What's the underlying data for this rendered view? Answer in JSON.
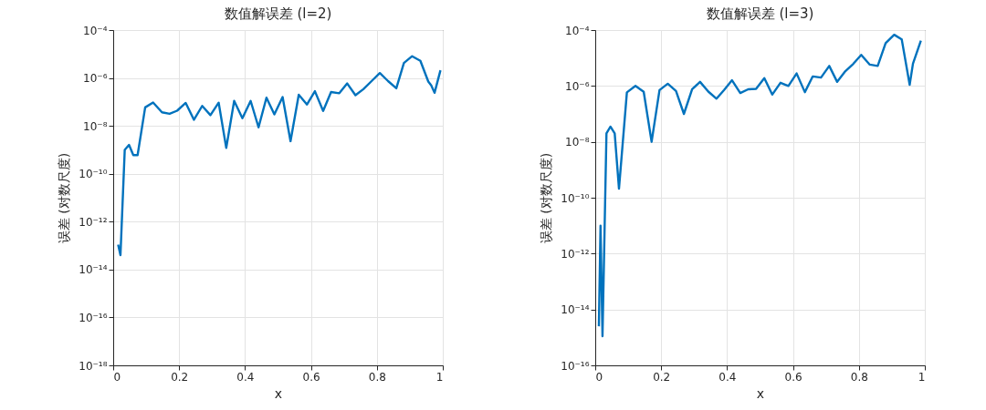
{
  "chart_data": [
    {
      "type": "line",
      "title": "数值解误差 (l=2)",
      "xlabel": "x",
      "ylabel": "误差 (对数尺度)",
      "log": true,
      "grid": true,
      "x": [
        0.015,
        0.022,
        0.035,
        0.048,
        0.061,
        0.074,
        0.097,
        0.121,
        0.148,
        0.171,
        0.194,
        0.22,
        0.245,
        0.27,
        0.295,
        0.32,
        0.343,
        0.367,
        0.392,
        0.417,
        0.441,
        0.465,
        0.489,
        0.514,
        0.538,
        0.563,
        0.588,
        0.612,
        0.637,
        0.661,
        0.686,
        0.71,
        0.735,
        0.759,
        0.784,
        0.809,
        0.834,
        0.859,
        0.882,
        0.907,
        0.932,
        0.956,
        0.965,
        0.975,
        0.993
      ],
      "series": [
        {
          "color": "#0072bd",
          "values": [
            1.1e-13,
            4e-14,
            1e-09,
            1.6e-09,
            6e-10,
            6e-10,
            5.9e-08,
            9.5e-08,
            3.7e-08,
            3.2e-08,
            4.3e-08,
            9.1e-08,
            1.8e-08,
            6.8e-08,
            2.8e-08,
            9.3e-08,
            1.2e-09,
            1.1e-07,
            2.1e-08,
            1.1e-07,
            8.7e-09,
            1.5e-07,
            3e-08,
            1.6e-07,
            2.3e-09,
            2e-07,
            7.8e-08,
            2.8e-07,
            4.2e-08,
            2.6e-07,
            2.3e-07,
            5.9e-07,
            1.9e-07,
            3.4e-07,
            7.4e-07,
            1.6e-06,
            7.4e-07,
            3.7e-07,
            4.2e-06,
            8.1e-06,
            5.2e-06,
            7.1e-07,
            4.9e-07,
            2.4e-07,
            2.1e-06
          ]
        }
      ],
      "xlim": [
        0,
        1
      ],
      "xticks": [
        0,
        0.2,
        0.4,
        0.6,
        0.8,
        1
      ],
      "ylim": [
        1e-18,
        0.0001
      ],
      "yticks": [
        {
          "value": 1e-18,
          "label": "10⁻¹⁸"
        },
        {
          "value": 1e-16,
          "label": "10⁻¹⁶"
        },
        {
          "value": 1e-14,
          "label": "10⁻¹⁴"
        },
        {
          "value": 1e-12,
          "label": "10⁻¹²"
        },
        {
          "value": 1e-10,
          "label": "10⁻¹⁰"
        },
        {
          "value": 1e-08,
          "label": "10⁻⁸"
        },
        {
          "value": 1e-06,
          "label": "10⁻⁶"
        },
        {
          "value": 0.0001,
          "label": "10⁻⁴"
        }
      ]
    },
    {
      "type": "line",
      "title": "数值解误差 (l=3)",
      "xlabel": "x",
      "ylabel": "误差 (对数尺度)",
      "log": true,
      "grid": true,
      "x": [
        0.011,
        0.016,
        0.022,
        0.034,
        0.046,
        0.059,
        0.072,
        0.096,
        0.122,
        0.147,
        0.171,
        0.195,
        0.22,
        0.245,
        0.269,
        0.294,
        0.318,
        0.343,
        0.368,
        0.391,
        0.415,
        0.44,
        0.464,
        0.488,
        0.513,
        0.537,
        0.562,
        0.586,
        0.611,
        0.636,
        0.66,
        0.685,
        0.71,
        0.734,
        0.759,
        0.783,
        0.807,
        0.833,
        0.857,
        0.881,
        0.907,
        0.93,
        0.954,
        0.964,
        0.988
      ],
      "series": [
        {
          "color": "#0072bd",
          "values": [
            2.5e-15,
            1e-11,
            1.1e-15,
            2e-08,
            3.5e-08,
            2e-08,
            2.1e-10,
            5.9e-07,
            1e-06,
            6.2e-07,
            1e-08,
            7.1e-07,
            1.2e-06,
            6.6e-07,
            1e-07,
            7.6e-07,
            1.4e-06,
            6.3e-07,
            3.5e-07,
            7.2e-07,
            1.6e-06,
            5.6e-07,
            7.6e-07,
            7.9e-07,
            1.9e-06,
            4.9e-07,
            1.3e-06,
            1e-06,
            2.8e-06,
            6e-07,
            2.2e-06,
            2e-06,
            5.2e-06,
            1.4e-06,
            3.4e-06,
            6.2e-06,
            1.3e-05,
            5.8e-06,
            5.2e-06,
            3.4e-05,
            6.8e-05,
            4.6e-05,
            1.1e-06,
            6.3e-06,
            4.2e-05
          ]
        }
      ],
      "xlim": [
        0,
        1
      ],
      "xticks": [
        0,
        0.2,
        0.4,
        0.6,
        0.8,
        1
      ],
      "ylim": [
        1e-16,
        0.0001
      ],
      "yticks": [
        {
          "value": 1e-16,
          "label": "10⁻¹⁶"
        },
        {
          "value": 1e-14,
          "label": "10⁻¹⁴"
        },
        {
          "value": 1e-12,
          "label": "10⁻¹²"
        },
        {
          "value": 1e-10,
          "label": "10⁻¹⁰"
        },
        {
          "value": 1e-08,
          "label": "10⁻⁸"
        },
        {
          "value": 1e-06,
          "label": "10⁻⁶"
        },
        {
          "value": 0.0001,
          "label": "10⁻⁴"
        }
      ]
    }
  ]
}
